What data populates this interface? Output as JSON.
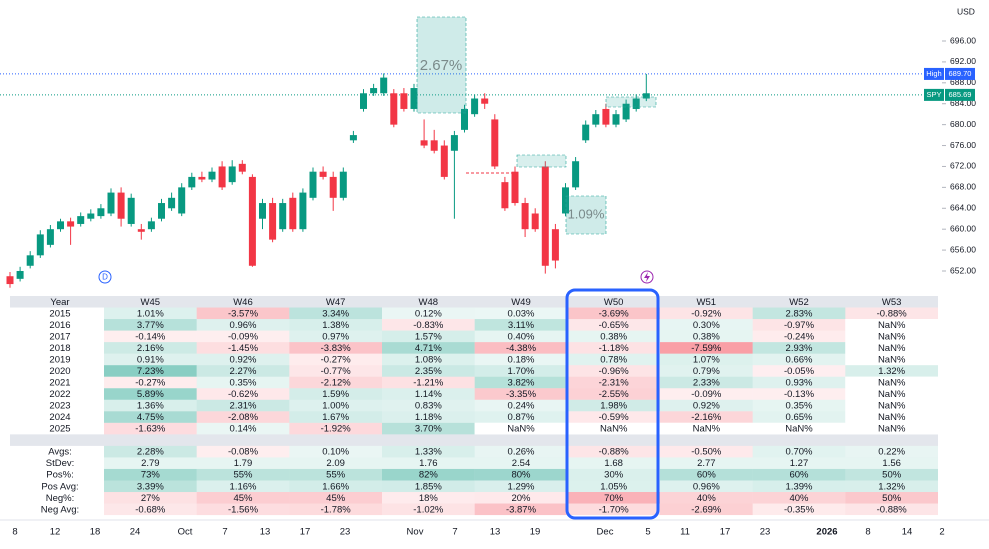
{
  "price_axis": {
    "currency": "USD",
    "ticks": [
      {
        "value": 696,
        "label": "696.00"
      },
      {
        "value": 692,
        "label": "692.00"
      },
      {
        "value": 688,
        "label": "688.00"
      },
      {
        "value": 684,
        "label": "684.00"
      },
      {
        "value": 680,
        "label": "680.00"
      },
      {
        "value": 676,
        "label": "676.00"
      },
      {
        "value": 672,
        "label": "672.00"
      },
      {
        "value": 668,
        "label": "668.00"
      },
      {
        "value": 664,
        "label": "664.00"
      },
      {
        "value": 660,
        "label": "660.00"
      },
      {
        "value": 656,
        "label": "656.00"
      },
      {
        "value": 652,
        "label": "652.00"
      }
    ]
  },
  "time_axis": [
    "8",
    "12",
    "18",
    "24",
    "Oct",
    "7",
    "13",
    "17",
    "23",
    "Nov",
    "7",
    "13",
    "19",
    "Dec",
    "5",
    "11",
    "17",
    "23",
    "2026",
    "8",
    "14",
    "2"
  ],
  "candles": [
    [
      651,
      651.8,
      648.8,
      649.5
    ],
    [
      650.5,
      652.8,
      650,
      652
    ],
    [
      653,
      655.8,
      652.5,
      655
    ],
    [
      655,
      659.8,
      654.5,
      659
    ],
    [
      657,
      660.8,
      656.5,
      660
    ],
    [
      660,
      662,
      659.5,
      661.5
    ],
    [
      661.5,
      662.2,
      657,
      660.5
    ],
    [
      661,
      663.2,
      660.5,
      662.5
    ],
    [
      662,
      663.8,
      661.5,
      663
    ],
    [
      662.5,
      664.8,
      662,
      664
    ],
    [
      663,
      667.8,
      662.5,
      667
    ],
    [
      667,
      668,
      660.5,
      662
    ],
    [
      661,
      666.8,
      660.5,
      666
    ],
    [
      660,
      661,
      658,
      659.5
    ],
    [
      660,
      662.2,
      659.5,
      661.5
    ],
    [
      662,
      665.8,
      661.5,
      665
    ],
    [
      664,
      667,
      663.5,
      666
    ],
    [
      663,
      668.8,
      662.5,
      668
    ],
    [
      668,
      670.8,
      667.5,
      670
    ],
    [
      670,
      671,
      669,
      669.5
    ],
    [
      669.5,
      671.8,
      669,
      671
    ],
    [
      672,
      673,
      667.5,
      668
    ],
    [
      669,
      673.2,
      668.5,
      672
    ],
    [
      672.5,
      673.2,
      670.5,
      671
    ],
    [
      670,
      670.5,
      652.8,
      653
    ],
    [
      662,
      665.8,
      660,
      665
    ],
    [
      665,
      666,
      657.5,
      658
    ],
    [
      660,
      665.8,
      659.5,
      665
    ],
    [
      666,
      667,
      659.5,
      660
    ],
    [
      660,
      667.8,
      659.5,
      667
    ],
    [
      666,
      671.8,
      665.5,
      671
    ],
    [
      671,
      672,
      669.5,
      670
    ],
    [
      670,
      671,
      663.5,
      666
    ],
    [
      666,
      671.8,
      665.5,
      671
    ],
    [
      677,
      678.8,
      676.5,
      678
    ],
    [
      683,
      686.8,
      682.5,
      686
    ],
    [
      686,
      687.8,
      685.5,
      687
    ],
    [
      686,
      689.8,
      685.5,
      689
    ],
    [
      686,
      686.8,
      679.5,
      680
    ],
    [
      686,
      687,
      682.5,
      683
    ],
    [
      683,
      687.8,
      682.5,
      687
    ],
    [
      677,
      681,
      675.5,
      676
    ],
    [
      677,
      679,
      674.5,
      675
    ],
    [
      676,
      677,
      669.5,
      670
    ],
    [
      675,
      678.8,
      662,
      678
    ],
    [
      679,
      683.8,
      678.5,
      683
    ],
    [
      682,
      685.8,
      681.5,
      685
    ],
    [
      685,
      686,
      683,
      684
    ],
    [
      681,
      682,
      671.5,
      672
    ],
    [
      669,
      670,
      663.5,
      664
    ],
    [
      671,
      672,
      664.5,
      665
    ],
    [
      665,
      666,
      658.5,
      660
    ],
    [
      663,
      664,
      659.5,
      660
    ],
    [
      672,
      673,
      651.5,
      653
    ],
    [
      660,
      661,
      652.5,
      654
    ],
    [
      663,
      668.8,
      662.5,
      668
    ],
    [
      668,
      673.8,
      667.5,
      673
    ],
    [
      677,
      680.8,
      676.5,
      680
    ],
    [
      680,
      682.8,
      679.5,
      682
    ],
    [
      683,
      684,
      679.5,
      680
    ],
    [
      680,
      682.8,
      679.5,
      682
    ],
    [
      681,
      684.8,
      680.5,
      684
    ],
    [
      683,
      685.8,
      682.5,
      685
    ],
    [
      685,
      689.7,
      684.5,
      686
    ]
  ],
  "annotations": {
    "box_1": "2.67%",
    "box_2": "1.09%",
    "high": {
      "name": "High",
      "value": 689.7,
      "label": "689.70"
    },
    "last": {
      "name": "SPY",
      "value": 685.69,
      "label": "685.69"
    },
    "marker": "D"
  },
  "table": {
    "header": [
      "Year",
      "W45",
      "W46",
      "W47",
      "W48",
      "W49",
      "W50",
      "W51",
      "W52",
      "W53"
    ],
    "rows": [
      [
        "2015",
        "1.01%",
        "-3.57%",
        "3.34%",
        "0.12%",
        "0.03%",
        "-3.69%",
        "-0.92%",
        "2.83%",
        "-0.88%"
      ],
      [
        "2016",
        "3.77%",
        "0.96%",
        "1.38%",
        "-0.83%",
        "3.11%",
        "-0.65%",
        "0.30%",
        "-0.97%",
        "NaN%"
      ],
      [
        "2017",
        "-0.14%",
        "-0.09%",
        "0.97%",
        "1.57%",
        "0.40%",
        "0.38%",
        "0.38%",
        "-0.24%",
        "NaN%"
      ],
      [
        "2018",
        "2.16%",
        "-1.45%",
        "-3.83%",
        "4.71%",
        "-4.38%",
        "-1.18%",
        "-7.59%",
        "2.93%",
        "NaN%"
      ],
      [
        "2019",
        "0.91%",
        "0.92%",
        "-0.27%",
        "1.08%",
        "0.18%",
        "0.78%",
        "1.07%",
        "0.66%",
        "NaN%"
      ],
      [
        "2020",
        "7.23%",
        "2.27%",
        "-0.77%",
        "2.35%",
        "1.70%",
        "-0.96%",
        "0.79%",
        "-0.05%",
        "1.32%"
      ],
      [
        "2021",
        "-0.27%",
        "0.35%",
        "-2.12%",
        "-1.21%",
        "3.82%",
        "-2.31%",
        "2.33%",
        "0.93%",
        "NaN%"
      ],
      [
        "2022",
        "5.89%",
        "-0.62%",
        "1.59%",
        "1.14%",
        "-3.35%",
        "-2.55%",
        "-0.09%",
        "-0.13%",
        "NaN%"
      ],
      [
        "2023",
        "1.36%",
        "2.31%",
        "1.00%",
        "0.83%",
        "0.24%",
        "1.98%",
        "0.92%",
        "0.35%",
        "NaN%"
      ],
      [
        "2024",
        "4.75%",
        "-2.08%",
        "1.67%",
        "1.18%",
        "0.87%",
        "-0.59%",
        "-2.16%",
        "0.65%",
        "NaN%"
      ],
      [
        "2025",
        "-1.63%",
        "0.14%",
        "-1.92%",
        "3.70%",
        "NaN%",
        "NaN%",
        "NaN%",
        "NaN%",
        "NaN%"
      ],
      [
        "Avgs:",
        "2.28%",
        "-0.08%",
        "0.10%",
        "1.33%",
        "0.26%",
        "-0.88%",
        "-0.50%",
        "0.70%",
        "0.22%"
      ],
      [
        "StDev:",
        "2.79",
        "1.79",
        "2.09",
        "1.76",
        "2.54",
        "1.68",
        "2.77",
        "1.27",
        "1.56"
      ],
      [
        "Pos%:",
        "73%",
        "55%",
        "55%",
        "82%",
        "80%",
        "30%",
        "60%",
        "60%",
        "50%"
      ],
      [
        "Pos Avg:",
        "3.39%",
        "1.16%",
        "1.66%",
        "1.85%",
        "1.29%",
        "1.05%",
        "0.96%",
        "1.39%",
        "1.32%"
      ],
      [
        "Neg%:",
        "27%",
        "45%",
        "45%",
        "18%",
        "20%",
        "70%",
        "40%",
        "40%",
        "50%"
      ],
      [
        "Neg Avg:",
        "-0.68%",
        "-1.56%",
        "-1.78%",
        "-1.02%",
        "-3.87%",
        "-1.70%",
        "-2.69%",
        "-0.35%",
        "-0.88%"
      ]
    ]
  }
}
